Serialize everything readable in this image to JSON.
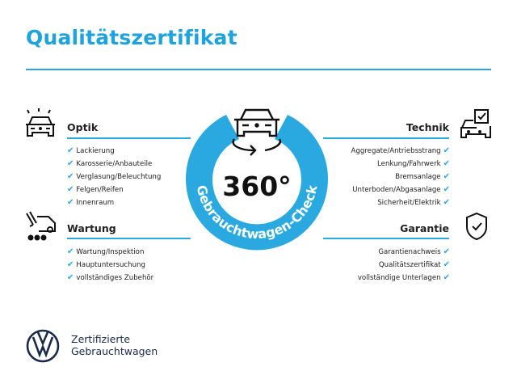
{
  "title": "Qualitätszertifikat",
  "center": {
    "big": "360°",
    "ring_text": "Gebrauchtwagen-Check"
  },
  "sections": {
    "optik": {
      "label": "Optik",
      "icon": "car-lights-icon",
      "items": [
        "Lackierung",
        "Karosserie/Anbauteile",
        "Verglasung/Beleuchtung",
        "Felgen/Reifen",
        "Innenraum"
      ]
    },
    "wartung": {
      "label": "Wartung",
      "icon": "service-van-icon",
      "items": [
        "Wartung/Inspektion",
        "Hauptuntersuchung",
        "vollständiges Zubehör"
      ]
    },
    "technik": {
      "label": "Technik",
      "icon": "car-checklist-icon",
      "items": [
        "Aggregate/Antriebsstrang",
        "Lenkung/Fahrwerk",
        "Bremsanlage",
        "Unterboden/Abgasanlage",
        "Sicherheit/Elektrik"
      ]
    },
    "garantie": {
      "label": "Garantie",
      "icon": "shield-check-icon",
      "items": [
        "Garantienachweis",
        "Qualitätszertifikat",
        "vollständige Unterlagen"
      ]
    }
  },
  "check_mark": "✔",
  "brand": {
    "line1": "Zertifizierte",
    "line2": "Gebrauchtwagen",
    "logo": "vw-logo"
  },
  "colors": {
    "accent": "#2aa9e0",
    "title": "#1fa3de",
    "brand": "#1b2a4a"
  }
}
